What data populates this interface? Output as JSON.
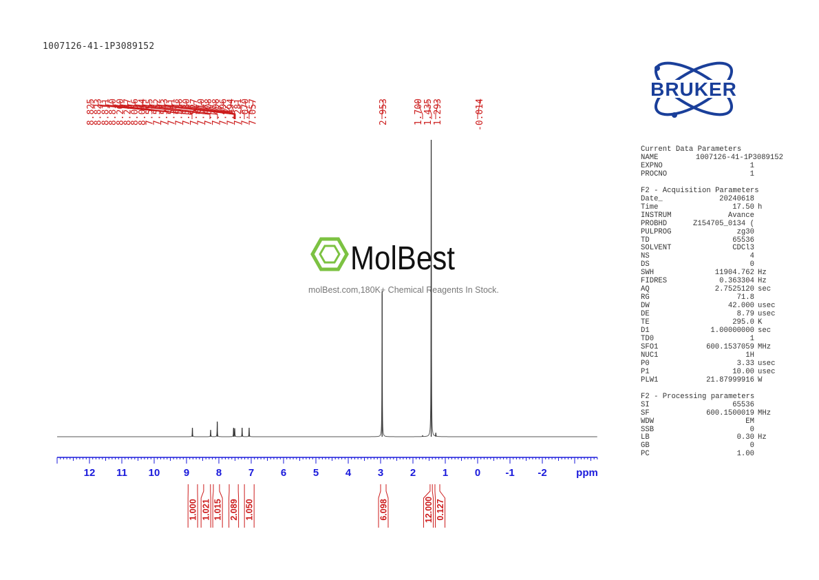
{
  "sample_name": "1007126-41-1P3089152",
  "logo": {
    "text": "BRUKER",
    "color": "#1a3f9a"
  },
  "watermark": {
    "brand": "MolBest",
    "tagline": "molBest.com,180K+ Chemical Reagents In Stock.",
    "color": "#7cc242"
  },
  "parameters": {
    "sections": [
      {
        "title": "Current Data Parameters",
        "rows": [
          {
            "key": "NAME",
            "value": "1007126-41-1P3089152",
            "unit": ""
          },
          {
            "key": "EXPNO",
            "value": "1",
            "unit": ""
          },
          {
            "key": "PROCNO",
            "value": "1",
            "unit": ""
          }
        ]
      },
      {
        "title": "F2 - Acquisition Parameters",
        "rows": [
          {
            "key": "Date_",
            "value": "20240618",
            "unit": ""
          },
          {
            "key": "Time",
            "value": "17.50",
            "unit": "h"
          },
          {
            "key": "INSTRUM",
            "value": "Avance",
            "unit": ""
          },
          {
            "key": "PROBHD",
            "value": "Z154705_0134 (",
            "unit": ""
          },
          {
            "key": "PULPROG",
            "value": "zg30",
            "unit": ""
          },
          {
            "key": "TD",
            "value": "65536",
            "unit": ""
          },
          {
            "key": "SOLVENT",
            "value": "CDCl3",
            "unit": ""
          },
          {
            "key": "NS",
            "value": "4",
            "unit": ""
          },
          {
            "key": "DS",
            "value": "0",
            "unit": ""
          },
          {
            "key": "SWH",
            "value": "11904.762",
            "unit": "Hz"
          },
          {
            "key": "FIDRES",
            "value": "0.363304",
            "unit": "Hz"
          },
          {
            "key": "AQ",
            "value": "2.7525120",
            "unit": "sec"
          },
          {
            "key": "RG",
            "value": "71.8",
            "unit": ""
          },
          {
            "key": "DW",
            "value": "42.000",
            "unit": "usec"
          },
          {
            "key": "DE",
            "value": "8.79",
            "unit": "usec"
          },
          {
            "key": "TE",
            "value": "295.0",
            "unit": "K"
          },
          {
            "key": "D1",
            "value": "1.00000000",
            "unit": "sec"
          },
          {
            "key": "TD0",
            "value": "1",
            "unit": ""
          },
          {
            "key": "SFO1",
            "value": "600.1537059",
            "unit": "MHz"
          },
          {
            "key": "NUC1",
            "value": "1H",
            "unit": ""
          },
          {
            "key": "P0",
            "value": "3.33",
            "unit": "usec"
          },
          {
            "key": "P1",
            "value": "10.00",
            "unit": "usec"
          },
          {
            "key": "PLW1",
            "value": "21.87999916",
            "unit": "W"
          }
        ]
      },
      {
        "title": "F2 - Processing parameters",
        "rows": [
          {
            "key": "SI",
            "value": "65536",
            "unit": ""
          },
          {
            "key": "SF",
            "value": "600.1500019",
            "unit": "MHz"
          },
          {
            "key": "WDW",
            "value": "EM",
            "unit": ""
          },
          {
            "key": "SSB",
            "value": "0",
            "unit": ""
          },
          {
            "key": "LB",
            "value": "0.30",
            "unit": "Hz"
          },
          {
            "key": "GB",
            "value": "0",
            "unit": ""
          },
          {
            "key": "PC",
            "value": "1.00",
            "unit": ""
          }
        ]
      }
    ]
  },
  "chart_data": {
    "type": "line",
    "xlabel": "ppm",
    "xlim": [
      13.0,
      -3.7
    ],
    "x_reversed": true,
    "grid": false,
    "x_ticks": [
      "12",
      "11",
      "10",
      "9",
      "8",
      "7",
      "6",
      "5",
      "4",
      "3",
      "2",
      "1",
      "0",
      "-1",
      "-2"
    ],
    "colors": {
      "spectrum": "#555555",
      "axis": "#1a1adb",
      "annotations": "#cc1b1b"
    },
    "peak_labels": [
      "8.825",
      "8.823",
      "8.811",
      "8.810",
      "8.260",
      "8.247",
      "8.056",
      "8.044",
      "7.555",
      "7.552",
      "7.543",
      "7.541",
      "7.538",
      "7.530",
      "7.527",
      "7.510",
      "7.508",
      "7.498",
      "7.496",
      "7.494",
      "7.281",
      "7.070",
      "7.057",
      "2.953",
      "1.700",
      "1.435",
      "1.293",
      "-0.014"
    ],
    "peaks": [
      {
        "ppm": 8.818,
        "intensity": 3.0
      },
      {
        "ppm": 8.254,
        "intensity": 2.3
      },
      {
        "ppm": 8.05,
        "intensity": 5.1
      },
      {
        "ppm": 7.545,
        "intensity": 3.0
      },
      {
        "ppm": 7.51,
        "intensity": 2.8
      },
      {
        "ppm": 7.281,
        "intensity": 3.0
      },
      {
        "ppm": 7.064,
        "intensity": 3.0
      },
      {
        "ppm": 2.953,
        "intensity": 49
      },
      {
        "ppm": 1.7,
        "intensity": 0.4
      },
      {
        "ppm": 1.435,
        "intensity": 100
      },
      {
        "ppm": 1.293,
        "intensity": 1.2
      }
    ],
    "integrals": [
      {
        "from": 8.95,
        "to": 8.66,
        "value": "1.000"
      },
      {
        "from": 8.47,
        "to": 8.26,
        "value": "1.021"
      },
      {
        "from": 8.17,
        "to": 7.98,
        "value": "1.015"
      },
      {
        "from": 7.68,
        "to": 7.4,
        "value": "2.089"
      },
      {
        "from": 7.21,
        "to": 6.91,
        "value": "1.050"
      },
      {
        "from": 3.0,
        "to": 2.83,
        "value": "6.098"
      },
      {
        "from": 1.47,
        "to": 1.4,
        "value": "12.000"
      },
      {
        "from": 1.32,
        "to": 1.17,
        "value": "0.127"
      }
    ]
  }
}
